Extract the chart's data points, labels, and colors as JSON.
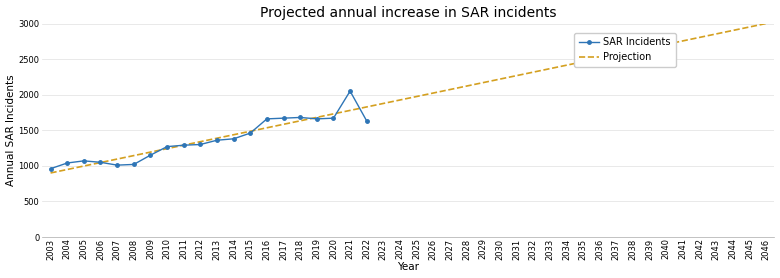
{
  "title": "Projected annual increase in SAR incidents",
  "xlabel": "Year",
  "ylabel": "Annual SAR Incidents",
  "sar_years": [
    2003,
    2004,
    2005,
    2006,
    2007,
    2008,
    2009,
    2010,
    2011,
    2012,
    2013,
    2014,
    2015,
    2016,
    2017,
    2018,
    2019,
    2020,
    2021,
    2022
  ],
  "sar_values": [
    960,
    1040,
    1070,
    1050,
    1010,
    1020,
    1150,
    1270,
    1290,
    1300,
    1360,
    1380,
    1460,
    1660,
    1670,
    1680,
    1660,
    1670,
    2050,
    1630
  ],
  "proj_years": [
    2003,
    2046
  ],
  "proj_values": [
    900,
    3000
  ],
  "sar_color": "#2E75B6",
  "proj_color": "#D4A020",
  "ylim": [
    0,
    3000
  ],
  "xlim_min": 2002.5,
  "xlim_max": 2046.5,
  "yticks": [
    0,
    500,
    1000,
    1500,
    2000,
    2500,
    3000
  ],
  "background_color": "#ffffff",
  "grid_color": "#e0e0e0",
  "title_fontsize": 10,
  "axis_label_fontsize": 7.5,
  "tick_fontsize": 6,
  "legend_fontsize": 7
}
